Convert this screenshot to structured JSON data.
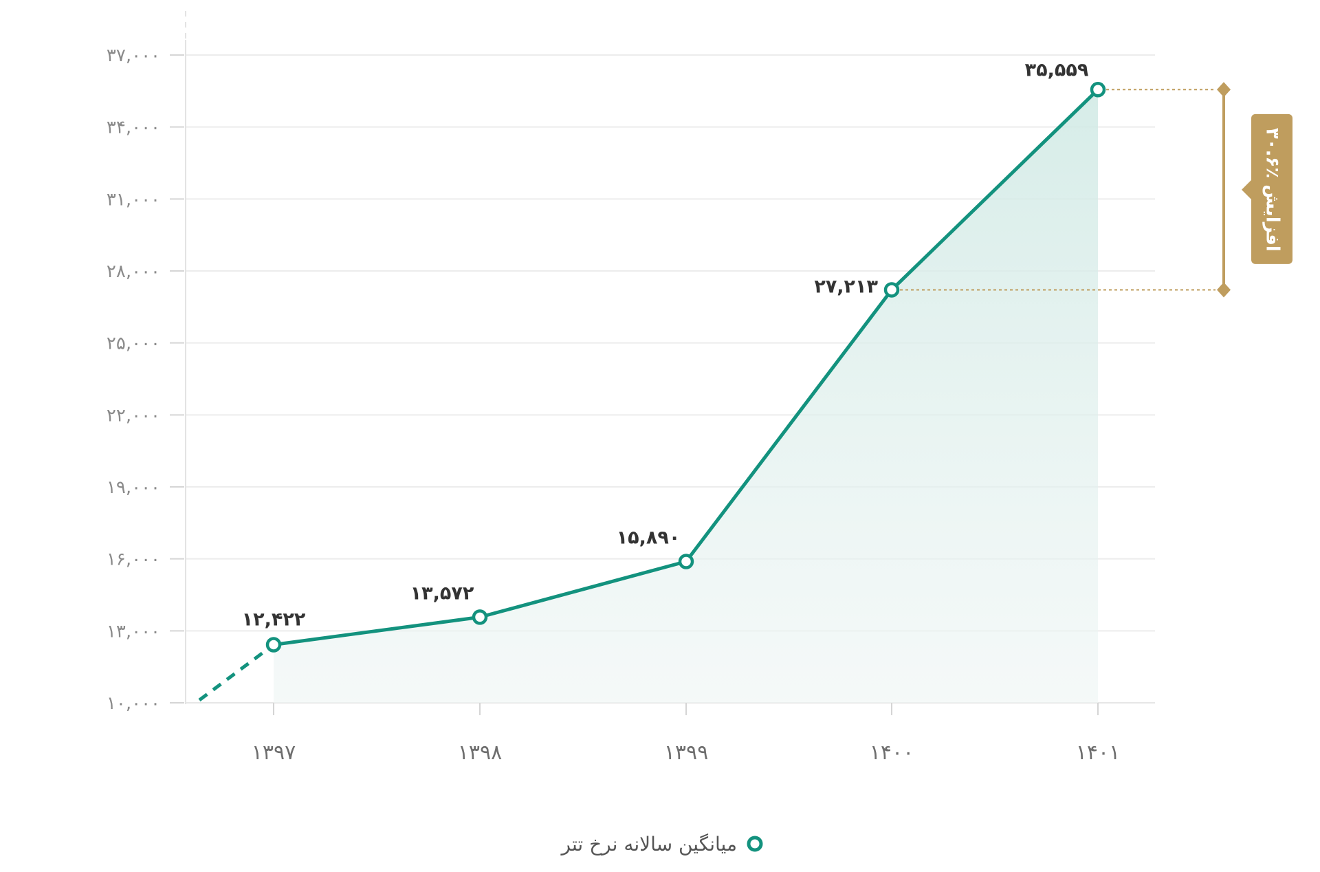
{
  "chart_data": {
    "type": "line",
    "title": "",
    "xlabel": "",
    "ylabel": "",
    "categories": [
      "۱۳۹۷",
      "۱۳۹۸",
      "۱۳۹۹",
      "۱۴۰۰",
      "۱۴۰۱"
    ],
    "series": [
      {
        "name": "میانگین سالانه نرخ تتر",
        "values": [
          12422,
          13572,
          15890,
          27213,
          35559
        ],
        "labels": [
          "۱۲,۴۲۲",
          "۱۳,۵۷۲",
          "۱۵,۸۹۰",
          "۲۷,۲۱۳",
          "۳۵,۵۵۹"
        ],
        "color": "#13927e"
      }
    ],
    "dashed_lead_in": {
      "from_value": 10000,
      "to_index": 0
    },
    "ylim": [
      10000,
      37000
    ],
    "yticks": [
      10000,
      13000,
      16000,
      19000,
      22000,
      25000,
      28000,
      31000,
      34000,
      37000
    ],
    "ytick_labels": [
      "۱۰,۰۰۰",
      "۱۳,۰۰۰",
      "۱۶,۰۰۰",
      "۱۹,۰۰۰",
      "۲۲,۰۰۰",
      "۲۵,۰۰۰",
      "۲۸,۰۰۰",
      "۳۱,۰۰۰",
      "۳۴,۰۰۰",
      "۳۷,۰۰۰"
    ],
    "grid": true,
    "annotation": {
      "text": "۳۰.۶٪ افزایش",
      "from_index": 3,
      "to_index": 4,
      "color": "#bf9d5e"
    },
    "legend_position": "bottom-center"
  },
  "colors": {
    "line": "#13927e",
    "area": "#d6ede9",
    "grid": "#ececec",
    "accent": "#bf9d5e"
  }
}
